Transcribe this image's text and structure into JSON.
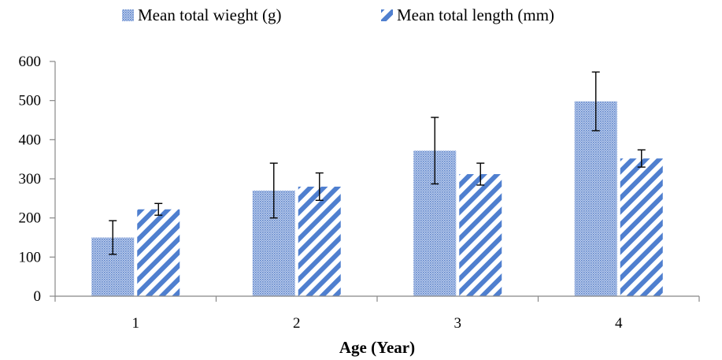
{
  "chart_data": {
    "type": "bar",
    "categories": [
      "1",
      "2",
      "3",
      "4"
    ],
    "series": [
      {
        "name": "Mean total wieght (g)",
        "values": [
          150,
          270,
          372,
          498
        ],
        "error": [
          43,
          70,
          85,
          75
        ],
        "pattern": "dotted",
        "color": "#6a8fd0"
      },
      {
        "name": "Mean total length (mm)",
        "values": [
          222,
          280,
          312,
          352
        ],
        "error": [
          15,
          35,
          28,
          22
        ],
        "pattern": "diagonal-stripes",
        "color": "#4f7fcf"
      }
    ],
    "title": "",
    "xlabel": "Age (Year)",
    "ylabel": "",
    "ylim": [
      0,
      600
    ],
    "yticks": [
      0,
      100,
      200,
      300,
      400,
      500,
      600
    ],
    "grid": false,
    "legend_position": "top-center",
    "error_bars": true
  }
}
